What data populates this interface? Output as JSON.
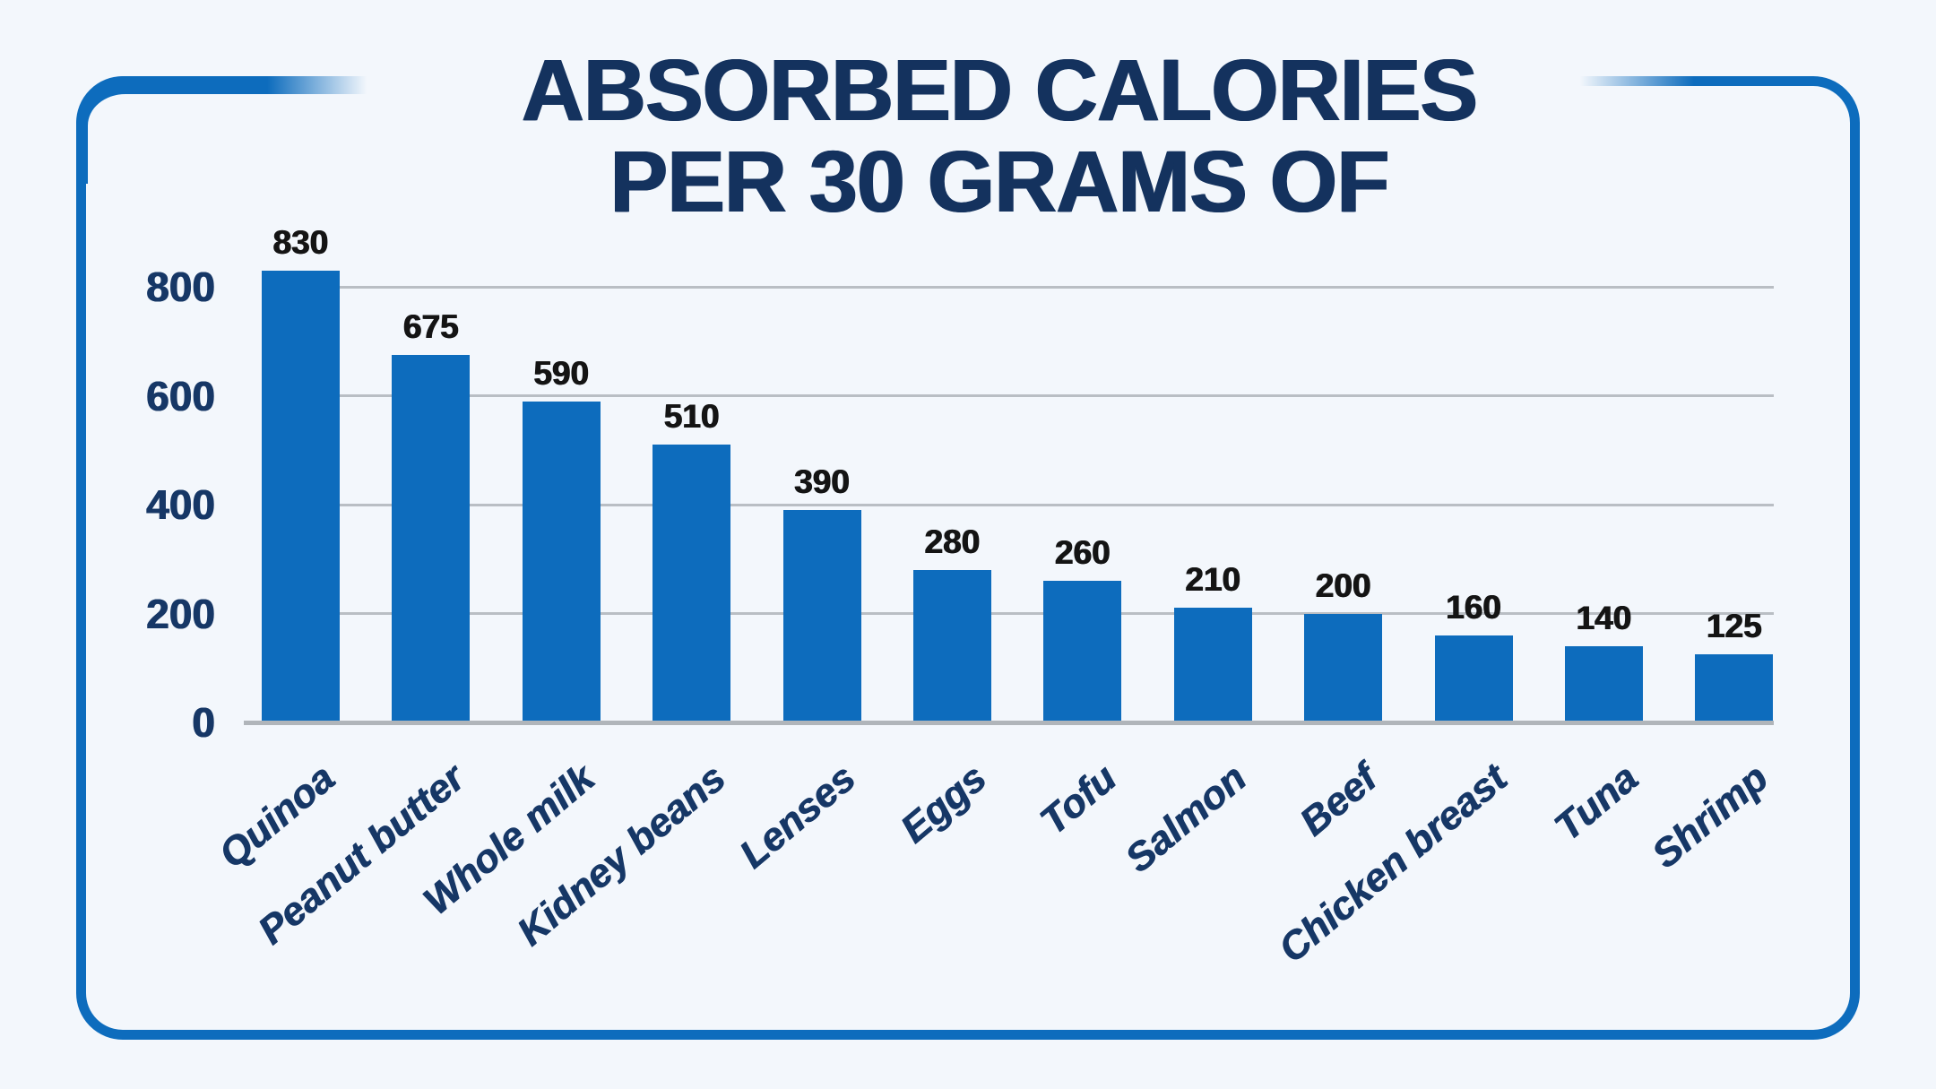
{
  "title": {
    "line1": "ABSORBED CALORIES",
    "line2": "PER 30 GRAMS OF"
  },
  "y_axis": {
    "tick_labels": [
      "800",
      "600",
      "400",
      "200",
      "0"
    ]
  },
  "chart_data": {
    "type": "bar",
    "title": "ABSORBED CALORIES PER 30 GRAMS OF",
    "categories": [
      "Quinoa",
      "Peanut butter",
      "Whole milk",
      "Kidney beans",
      "Lenses",
      "Eggs",
      "Tofu",
      "Salmon",
      "Beef",
      "Chicken breast",
      "Tuna",
      "Shrimp"
    ],
    "values": [
      830,
      675,
      590,
      510,
      390,
      280,
      260,
      210,
      200,
      160,
      140,
      125
    ],
    "xlabel": "",
    "ylabel": "",
    "ylim": [
      0,
      870
    ],
    "yticks": [
      0,
      200,
      400,
      600,
      800
    ],
    "grid": "horizontal",
    "legend": "none",
    "value_labels": true,
    "x_label_rotation_deg": -40
  },
  "colors": {
    "background": "#f3f7fc",
    "frame_border": "#0d6cbd",
    "bar": "#0d6cbd",
    "title_text": "#14325e",
    "axis_label_text": "#163766",
    "value_label_text": "#141414",
    "gridline": "#b9bec4",
    "baseline": "#b0b5ba"
  }
}
